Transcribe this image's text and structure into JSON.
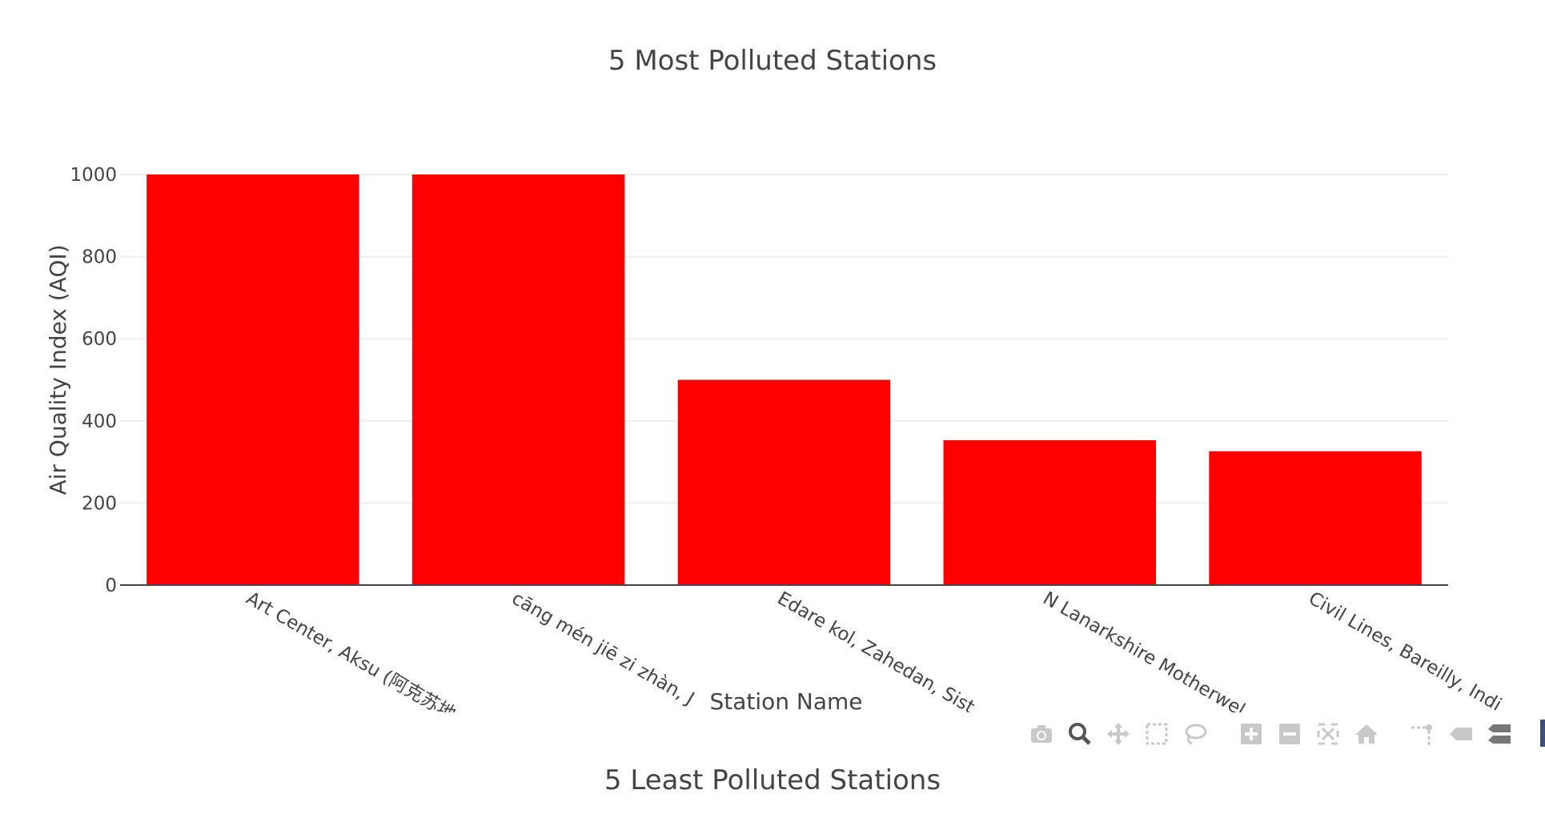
{
  "chart_data": [
    {
      "type": "bar",
      "title": "5 Most Polluted Stations",
      "xlabel": "Station Name",
      "ylabel": "Air Quality Index (AQI)",
      "categories": [
        "Art Center, Aksu (阿克苏地",
        "cāng mén jiē zi zhàn, J",
        "Edare kol, Zahedan, Sist",
        "N Lanarkshire Motherwel",
        "Civil Lines, Bareilly, Indi"
      ],
      "values": [
        1000,
        1000,
        500,
        353,
        326
      ],
      "ylim": [
        0,
        1000
      ],
      "yticks": [
        0,
        200,
        400,
        600,
        800,
        1000
      ],
      "bar_color": "#ff0000",
      "grid": true
    },
    {
      "type": "bar",
      "title": "5 Least Polluted Stations"
    }
  ],
  "modebar": {
    "icons": [
      "camera-icon",
      "zoom-icon",
      "pan-icon",
      "box-select-icon",
      "lasso-select-icon",
      "zoom-in-icon",
      "zoom-out-icon",
      "autoscale-icon",
      "reset-axes-icon",
      "spike-lines-icon",
      "hover-closest-icon",
      "hover-compare-icon"
    ]
  }
}
